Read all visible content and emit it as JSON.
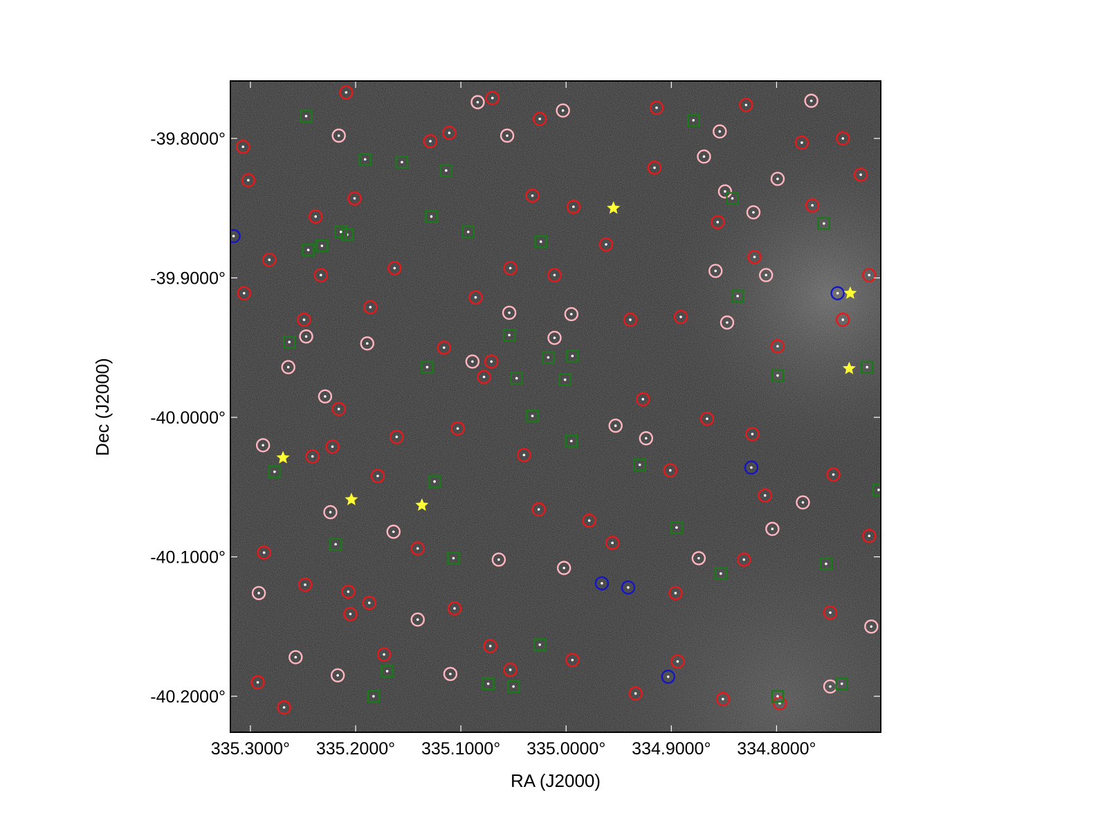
{
  "chart_data": {
    "type": "scatter",
    "x_label": "RA (J2000)",
    "y_label": "Dec (J2000)",
    "xlim": [
      335.319,
      334.701
    ],
    "ylim": [
      -40.2258,
      -39.7588
    ],
    "xticks": [
      {
        "value": 335.3,
        "label": "335.3000°"
      },
      {
        "value": 335.2,
        "label": "335.2000°"
      },
      {
        "value": 335.1,
        "label": "335.1000°"
      },
      {
        "value": 335.0,
        "label": "335.0000°"
      },
      {
        "value": 334.9,
        "label": "334.9000°"
      },
      {
        "value": 334.8,
        "label": "334.8000°"
      }
    ],
    "yticks": [
      {
        "value": -39.8,
        "label": "-39.8000°"
      },
      {
        "value": -39.9,
        "label": "-39.9000°"
      },
      {
        "value": -40.0,
        "label": "-40.0000°"
      },
      {
        "value": -40.1,
        "label": "-40.1000°"
      },
      {
        "value": -40.2,
        "label": "-40.2000°"
      }
    ],
    "series": [
      {
        "marker": "circle",
        "color": "#ffb6c1",
        "x": [
          335.216,
          335.056,
          335.003,
          335.084,
          334.767,
          334.854,
          334.869,
          334.799,
          334.822,
          334.849,
          334.858,
          334.81,
          334.847,
          335.054,
          335.089,
          334.995,
          335.011,
          335.247,
          335.264,
          335.229,
          335.189,
          335.288,
          335.224,
          335.164,
          335.141,
          335.11,
          335.064,
          335.002,
          334.953,
          334.924,
          334.874,
          334.804,
          334.775,
          334.71,
          334.749,
          335.292,
          335.257,
          335.217
        ],
        "y": [
          -39.798,
          -39.798,
          -39.78,
          -39.774,
          -39.773,
          -39.795,
          -39.813,
          -39.829,
          -39.853,
          -39.838,
          -39.895,
          -39.898,
          -39.932,
          -39.925,
          -39.96,
          -39.926,
          -39.943,
          -39.942,
          -39.964,
          -39.985,
          -39.947,
          -40.02,
          -40.068,
          -40.082,
          -40.145,
          -40.184,
          -40.102,
          -40.108,
          -40.006,
          -40.015,
          -40.101,
          -40.08,
          -40.061,
          -40.15,
          -40.193,
          -40.126,
          -40.172,
          -40.185
        ]
      },
      {
        "marker": "circle",
        "color": "#e41a1c",
        "x": [
          335.209,
          335.07,
          335.025,
          334.914,
          334.829,
          334.737,
          334.776,
          334.72,
          334.766,
          334.712,
          334.737,
          334.746,
          334.712,
          334.749,
          334.797,
          334.851,
          334.894,
          334.934,
          334.994,
          335.053,
          335.072,
          335.106,
          335.173,
          335.205,
          335.293,
          335.268,
          335.287,
          335.248,
          335.187,
          335.141,
          335.103,
          335.078,
          335.04,
          335.026,
          334.978,
          334.956,
          334.896,
          334.831,
          334.811,
          334.823,
          334.866,
          334.901,
          334.927,
          334.939,
          334.891,
          334.856,
          334.821,
          334.799,
          334.916,
          334.962,
          334.993,
          335.032,
          335.053,
          335.011,
          335.086,
          335.071,
          335.116,
          335.161,
          335.186,
          335.216,
          335.249,
          335.282,
          335.241,
          335.222,
          335.179,
          335.207,
          335.163,
          335.201,
          335.238,
          335.233,
          335.129,
          335.111,
          335.307,
          335.302,
          335.306
        ],
        "y": [
          -39.767,
          -39.771,
          -39.786,
          -39.778,
          -39.776,
          -39.8,
          -39.803,
          -39.826,
          -39.848,
          -39.898,
          -39.93,
          -40.041,
          -40.085,
          -40.14,
          -40.205,
          -40.202,
          -40.175,
          -40.198,
          -40.174,
          -40.181,
          -40.164,
          -40.137,
          -40.17,
          -40.141,
          -40.19,
          -40.208,
          -40.097,
          -40.12,
          -40.133,
          -40.094,
          -40.008,
          -39.971,
          -40.027,
          -40.066,
          -40.074,
          -40.09,
          -40.126,
          -40.102,
          -40.056,
          -40.012,
          -40.001,
          -40.038,
          -39.987,
          -39.93,
          -39.928,
          -39.86,
          -39.885,
          -39.949,
          -39.821,
          -39.876,
          -39.849,
          -39.841,
          -39.893,
          -39.898,
          -39.914,
          -39.96,
          -39.95,
          -40.014,
          -39.921,
          -39.994,
          -39.93,
          -39.887,
          -40.028,
          -40.021,
          -40.042,
          -40.125,
          -39.893,
          -39.843,
          -39.856,
          -39.898,
          -39.802,
          -39.796,
          -39.806,
          -39.83,
          -39.911
        ]
      },
      {
        "marker": "square",
        "color": "#1a7a1a",
        "x": [
          335.247,
          335.191,
          335.156,
          335.114,
          335.128,
          335.093,
          335.208,
          335.232,
          335.214,
          335.245,
          335.024,
          334.879,
          334.842,
          334.755,
          334.837,
          335.263,
          335.132,
          335.054,
          335.047,
          335.017,
          334.994,
          335.001,
          335.032,
          334.995,
          334.93,
          334.799,
          334.714,
          335.277,
          335.125,
          335.219,
          335.107,
          334.895,
          334.853,
          334.753,
          335.025,
          335.17,
          335.183,
          335.074,
          335.05,
          334.799,
          334.738,
          334.703
        ],
        "y": [
          -39.784,
          -39.815,
          -39.817,
          -39.823,
          -39.856,
          -39.867,
          -39.869,
          -39.877,
          -39.867,
          -39.88,
          -39.874,
          -39.787,
          -39.843,
          -39.861,
          -39.913,
          -39.946,
          -39.964,
          -39.941,
          -39.972,
          -39.957,
          -39.956,
          -39.973,
          -39.999,
          -40.017,
          -40.034,
          -39.97,
          -39.964,
          -40.039,
          -40.046,
          -40.091,
          -40.101,
          -40.079,
          -40.112,
          -40.105,
          -40.163,
          -40.182,
          -40.2,
          -40.191,
          -40.193,
          -40.2,
          -40.191,
          -40.052
        ]
      },
      {
        "marker": "circle",
        "color": "#1515c8",
        "x": [
          335.316,
          334.742,
          334.824,
          334.966,
          334.941,
          334.903
        ],
        "y": [
          -39.87,
          -39.911,
          -40.036,
          -40.119,
          -40.122,
          -40.186
        ]
      },
      {
        "marker": "star",
        "color": "#ffff33",
        "x": [
          334.955,
          334.73,
          334.731,
          335.269,
          335.204,
          335.137
        ],
        "y": [
          -39.85,
          -39.911,
          -39.965,
          -40.029,
          -40.059,
          -40.063
        ]
      }
    ]
  }
}
